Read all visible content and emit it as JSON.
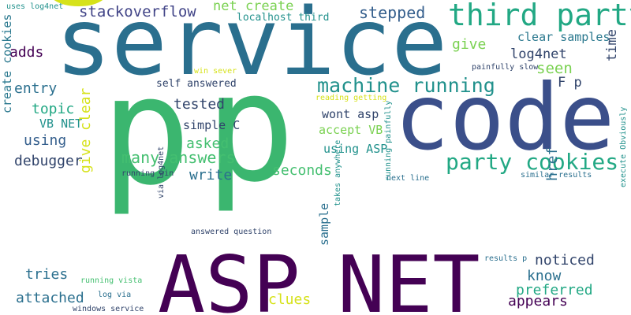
{
  "palette": {
    "dark_purple": "#440154",
    "indigo": "#414487",
    "blue": "#355f8d",
    "teal": "#2a788e",
    "teal_green": "#21918c",
    "green": "#22a884",
    "light_green": "#44bf70",
    "lime": "#7ad151",
    "yellow": "#d6e21a"
  },
  "words": [
    {
      "text": "question",
      "color": "#d6e21a"
    },
    {
      "text": "p",
      "color": "#3bb66f"
    },
    {
      "text": "p",
      "color": "#3bb66f"
    },
    {
      "text": "service",
      "color": "#2a6f8e"
    },
    {
      "text": "code",
      "color": "#3b4f8a"
    },
    {
      "text": "ASP",
      "color": "#440154"
    },
    {
      "text": "NET",
      "color": "#440154"
    },
    {
      "text": "third party",
      "color": "#22a884"
    },
    {
      "text": "party cookies",
      "color": "#22a884"
    },
    {
      "text": "machine running",
      "color": "#21918c"
    },
    {
      "text": "stackoverflow",
      "color": "#414487"
    },
    {
      "text": "stepped",
      "color": "#355f8d"
    },
    {
      "text": "net create",
      "color": "#7ad151"
    },
    {
      "text": "localhost third",
      "color": "#21918c"
    },
    {
      "text": "uses log4net",
      "color": "#21918c"
    },
    {
      "text": "clear samples",
      "color": "#2a788e"
    },
    {
      "text": "log4net",
      "color": "#31446b"
    },
    {
      "text": "give",
      "color": "#7ad151"
    },
    {
      "text": "adds",
      "color": "#440154"
    },
    {
      "text": "win sever",
      "color": "#d6e21a"
    },
    {
      "text": "painfully slow",
      "color": "#31446b"
    },
    {
      "text": "seen",
      "color": "#7ad151"
    },
    {
      "text": "F p",
      "color": "#31446b"
    },
    {
      "text": "time",
      "color": "#31446b"
    },
    {
      "text": "entry",
      "color": "#2a6f8e"
    },
    {
      "text": "self answered",
      "color": "#31446b"
    },
    {
      "text": "reading getting",
      "color": "#d6e21a"
    },
    {
      "text": "topic",
      "color": "#22a884"
    },
    {
      "text": "tested",
      "color": "#31446b"
    },
    {
      "text": "wont asp",
      "color": "#31446b"
    },
    {
      "text": "VB NET",
      "color": "#21918c"
    },
    {
      "text": "simple C",
      "color": "#31446b"
    },
    {
      "text": "accept VB",
      "color": "#7ad151"
    },
    {
      "text": "create cookies",
      "color": "#2a788e"
    },
    {
      "text": "using",
      "color": "#355f8d"
    },
    {
      "text": "asked",
      "color": "#44bf70"
    },
    {
      "text": "using ASP",
      "color": "#21918c"
    },
    {
      "text": "debugger",
      "color": "#31446b"
    },
    {
      "text": "many answers",
      "color": "#44bf70"
    },
    {
      "text": "seconds",
      "color": "#44bf70"
    },
    {
      "text": "write",
      "color": "#2a6f8e"
    },
    {
      "text": "running win",
      "color": "#31446b"
    },
    {
      "text": "via log4net",
      "color": "#31446b"
    },
    {
      "text": "href",
      "color": "#2a6f8e"
    },
    {
      "text": "give clear",
      "color": "#d6e21a"
    },
    {
      "text": "next line",
      "color": "#2a6f8e"
    },
    {
      "text": "similar results",
      "color": "#2a6f8e"
    },
    {
      "text": "takes anywhere",
      "color": "#21918c"
    },
    {
      "text": "answered question",
      "color": "#31446b"
    },
    {
      "text": "sample",
      "color": "#2a6f8e"
    },
    {
      "text": "noticed",
      "color": "#31446b"
    },
    {
      "text": "know",
      "color": "#2a6f8e"
    },
    {
      "text": "execute Obviously",
      "color": "#21918c"
    },
    {
      "text": "running painfully",
      "color": "#21918c"
    },
    {
      "text": "tries",
      "color": "#2a6f8e"
    },
    {
      "text": "results p",
      "color": "#2a6f8e"
    },
    {
      "text": "preferred",
      "color": "#22a884"
    },
    {
      "text": "attached",
      "color": "#2a6f8e"
    },
    {
      "text": "running vista",
      "color": "#44bf70"
    },
    {
      "text": "clues",
      "color": "#d6e21a"
    },
    {
      "text": "appears",
      "color": "#440154"
    },
    {
      "text": "log via",
      "color": "#2a6f8e"
    },
    {
      "text": "windows service",
      "color": "#31446b"
    }
  ]
}
